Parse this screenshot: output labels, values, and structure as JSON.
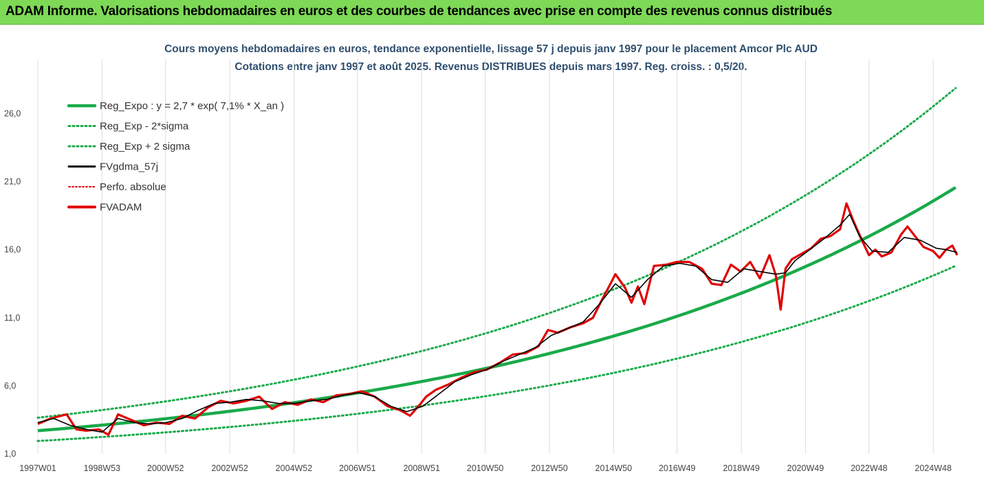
{
  "header": {
    "banner": "ADAM Informe. Valorisations hebdomadaires en euros et des courbes de tendances avec prise en compte des revenus connus distribués"
  },
  "chart_data": {
    "type": "line",
    "title": "Cours moyens hebdomadaires en euros, tendance exponentielle, lissage 57 j depuis janv 1997 pour le placement Amcor Plc AUD",
    "subtitle": "Cotations entre janv 1997 et août 2025.  Revenus DISTRIBUES depuis mars 1997. Reg. croiss. : 0,5/20.",
    "xlabel": "",
    "ylabel": "",
    "x_ticks": [
      "1997W01",
      "1998W53",
      "2000W52",
      "2002W52",
      "2004W52",
      "2006W51",
      "2008W51",
      "2010W50",
      "2012W50",
      "2014W50",
      "2016W49",
      "2018W49",
      "2020W49",
      "2022W48",
      "2024W48"
    ],
    "y_ticks": [
      "1,0",
      "6,0",
      "11,0",
      "16,0",
      "21,0",
      "26,0"
    ],
    "ylim": [
      1,
      29.5
    ],
    "xlim": [
      1997.0,
      2025.65
    ],
    "grid": "vertical",
    "legend_position": "top-left",
    "colors": {
      "trend": "#1aaa4a",
      "band": "#1aaa4a",
      "smooth": "#000000",
      "absolute": "#e00000",
      "fvadam": "#e00000"
    },
    "legend": [
      {
        "name": "Reg_Expo : y = 2,7 * exp( 7,1% *  X_an )",
        "style": "solid-green"
      },
      {
        "name": "Reg_Exp - 2*sigma",
        "style": "dotted-green"
      },
      {
        "name": "Reg_Exp + 2 sigma",
        "style": "dotted-green"
      },
      {
        "name": "FVgdma_57j",
        "style": "solid-black"
      },
      {
        "name": "Perfo. absolue",
        "style": "dotted-red"
      },
      {
        "name": "FVADAM",
        "style": "solid-red"
      }
    ],
    "trend": {
      "a": 2.7,
      "rate": 0.071,
      "start_year": 1997.0,
      "lower_factor": 0.72,
      "upper_factor": 1.355
    },
    "series": [
      {
        "name": "FVADAM",
        "x": [
          1997.0,
          1997.4,
          1997.9,
          1998.2,
          1998.5,
          1998.9,
          1999.2,
          1999.5,
          1999.9,
          2000.3,
          2000.7,
          2001.1,
          2001.5,
          2001.9,
          2002.3,
          2002.7,
          2003.1,
          2003.5,
          2003.9,
          2004.3,
          2004.7,
          2005.1,
          2005.5,
          2005.9,
          2006.3,
          2006.7,
          2007.1,
          2007.5,
          2007.9,
          2008.3,
          2008.6,
          2008.9,
          2009.1,
          2009.4,
          2009.8,
          2010.2,
          2010.6,
          2011.0,
          2011.4,
          2011.8,
          2012.2,
          2012.6,
          2012.9,
          2013.2,
          2013.6,
          2014.0,
          2014.3,
          2014.6,
          2014.8,
          2015.0,
          2015.3,
          2015.5,
          2015.7,
          2015.9,
          2016.2,
          2016.6,
          2016.9,
          2017.3,
          2017.7,
          2018.0,
          2018.3,
          2018.6,
          2018.9,
          2019.2,
          2019.5,
          2019.8,
          2020.0,
          2020.15,
          2020.3,
          2020.5,
          2020.8,
          2021.1,
          2021.4,
          2021.7,
          2022.0,
          2022.2,
          2022.4,
          2022.7,
          2022.9,
          2023.1,
          2023.3,
          2023.6,
          2023.9,
          2024.1,
          2024.4,
          2024.6,
          2024.9,
          2025.1,
          2025.3,
          2025.5,
          2025.65
        ],
        "y": [
          3.2,
          3.6,
          3.9,
          2.8,
          2.7,
          2.8,
          2.4,
          3.9,
          3.5,
          3.1,
          3.3,
          3.2,
          3.8,
          3.6,
          4.4,
          4.9,
          4.7,
          4.9,
          5.2,
          4.3,
          4.8,
          4.6,
          5.0,
          4.8,
          5.3,
          5.4,
          5.6,
          5.2,
          4.5,
          4.2,
          3.8,
          4.6,
          5.2,
          5.7,
          6.1,
          6.6,
          7.0,
          7.2,
          7.7,
          8.3,
          8.4,
          8.9,
          10.1,
          9.9,
          10.3,
          10.6,
          11.0,
          12.4,
          13.3,
          14.2,
          13.2,
          12.1,
          13.3,
          12.0,
          14.8,
          14.9,
          15.1,
          15.1,
          14.6,
          13.5,
          13.4,
          14.9,
          14.4,
          15.1,
          13.9,
          15.6,
          14.1,
          11.6,
          14.6,
          15.3,
          15.7,
          16.1,
          16.8,
          17.0,
          17.5,
          19.4,
          18.2,
          16.6,
          15.6,
          16.0,
          15.5,
          15.8,
          17.1,
          17.7,
          16.8,
          16.2,
          15.9,
          15.4,
          16.0,
          16.3,
          15.6
        ]
      },
      {
        "name": "FVgdma_57j",
        "x": [
          1997.0,
          1997.5,
          1998.0,
          1998.5,
          1999.0,
          1999.5,
          2000.0,
          2000.5,
          2001.0,
          2001.5,
          2002.0,
          2002.5,
          2003.0,
          2003.5,
          2004.0,
          2004.5,
          2005.0,
          2005.5,
          2006.0,
          2006.5,
          2007.0,
          2007.5,
          2008.0,
          2008.5,
          2009.0,
          2009.5,
          2010.0,
          2010.5,
          2011.0,
          2011.5,
          2012.0,
          2012.5,
          2013.0,
          2013.5,
          2014.0,
          2014.5,
          2015.0,
          2015.5,
          2016.0,
          2016.5,
          2017.0,
          2017.5,
          2018.0,
          2018.5,
          2019.0,
          2019.5,
          2020.0,
          2020.3,
          2020.6,
          2021.0,
          2021.5,
          2022.0,
          2022.3,
          2022.6,
          2023.0,
          2023.5,
          2024.0,
          2024.5,
          2025.0,
          2025.3,
          2025.65
        ],
        "y": [
          3.3,
          3.6,
          3.1,
          2.8,
          2.6,
          3.6,
          3.3,
          3.2,
          3.3,
          3.6,
          4.2,
          4.7,
          4.8,
          5.0,
          4.9,
          4.7,
          4.7,
          4.9,
          5.0,
          5.3,
          5.5,
          5.2,
          4.5,
          4.1,
          4.5,
          5.4,
          6.3,
          6.8,
          7.2,
          7.8,
          8.3,
          8.8,
          9.7,
          10.2,
          10.7,
          12.0,
          13.5,
          12.5,
          13.8,
          14.8,
          15.0,
          14.8,
          13.8,
          13.6,
          14.6,
          14.4,
          14.2,
          14.3,
          15.2,
          15.9,
          16.8,
          17.8,
          18.6,
          17.0,
          15.9,
          15.8,
          16.9,
          16.7,
          16.1,
          16.0,
          15.8
        ]
      }
    ]
  }
}
